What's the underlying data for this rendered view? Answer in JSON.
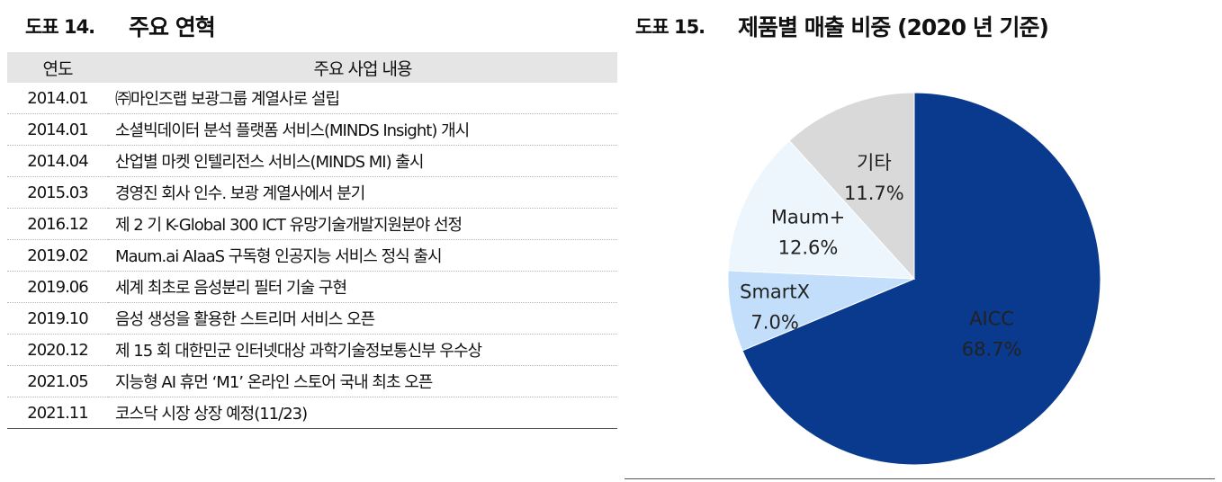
{
  "left_figure": {
    "number": "도표 14.",
    "title": "주요 연혁",
    "headers": [
      "연도",
      "주요 사업 내용"
    ],
    "rows": [
      {
        "year": "2014.01",
        "text": "㈜마인즈랩 보광그룹 계열사로 설립"
      },
      {
        "year": "2014.01",
        "text": "소셜빅데이터 분석 플랫폼 서비스(MINDS Insight) 개시"
      },
      {
        "year": "2014.04",
        "text": "산업별 마켓 인텔리전스 서비스(MINDS MI) 출시"
      },
      {
        "year": "2015.03",
        "text": "경영진 회사 인수. 보광 계열사에서 분기"
      },
      {
        "year": "2016.12",
        "text": "제 2 기 K-Global 300 ICT 유망기술개발지원분야 선정"
      },
      {
        "year": "2019.02",
        "text": "Maum.ai AIaaS 구독형 인공지능 서비스 정식 출시"
      },
      {
        "year": "2019.06",
        "text": "세계 최초로 음성분리 필터 기술 구현"
      },
      {
        "year": "2019.10",
        "text": "음성 생성을 활용한 스트리머 서비스 오픈"
      },
      {
        "year": "2020.12",
        "text": "제 15 회 대한민군 인터넷대상 과학기술정보통신부 우수상"
      },
      {
        "year": "2021.05",
        "text": "지능형 AI 휴먼 ‘M1’ 온라인 스토어 국내 최초 오픈"
      },
      {
        "year": "2021.11",
        "text": "코스닥 시장 상장 예정(11/23)"
      }
    ]
  },
  "right_figure": {
    "number": "도표 15.",
    "title": "제품별 매출 비중 (2020 년 기준)"
  },
  "chart_data": {
    "type": "pie",
    "title": "제품별 매출 비중 (2020 년 기준)",
    "unit": "%",
    "slices": [
      {
        "label": "AICC",
        "value": 68.7,
        "display": "68.7%",
        "color": "#0a3a8e",
        "text_color": "#ffffff"
      },
      {
        "label": "SmartX",
        "value": 7.0,
        "display": "7.0%",
        "color": "#c2defa",
        "text_color": "#222222"
      },
      {
        "label": "Maum+",
        "value": 12.6,
        "display": "12.6%",
        "color": "#edf5fd",
        "text_color": "#222222"
      },
      {
        "label": "기타",
        "value": 11.7,
        "display": "11.7%",
        "color": "#d9d9d9",
        "text_color": "#222222"
      }
    ],
    "start": "12 o'clock",
    "direction": "clockwise",
    "legend": "none"
  }
}
